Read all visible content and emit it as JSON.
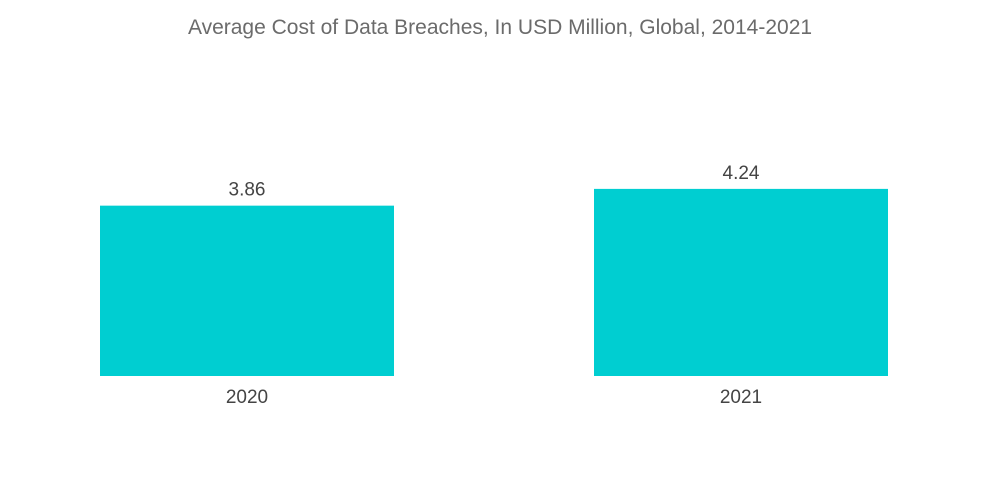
{
  "chart_data": {
    "type": "bar",
    "title": "Average Cost of Data Breaches, In USD Million, Global, 2014-2021",
    "categories": [
      "2020",
      "2021"
    ],
    "values": [
      3.86,
      4.24
    ],
    "xlabel": "",
    "ylabel": "",
    "ylim": [
      0,
      4.6
    ],
    "grid": false,
    "bar_color": "#00ced1",
    "label_color": "#444444",
    "title_color": "#6b6b6b"
  }
}
